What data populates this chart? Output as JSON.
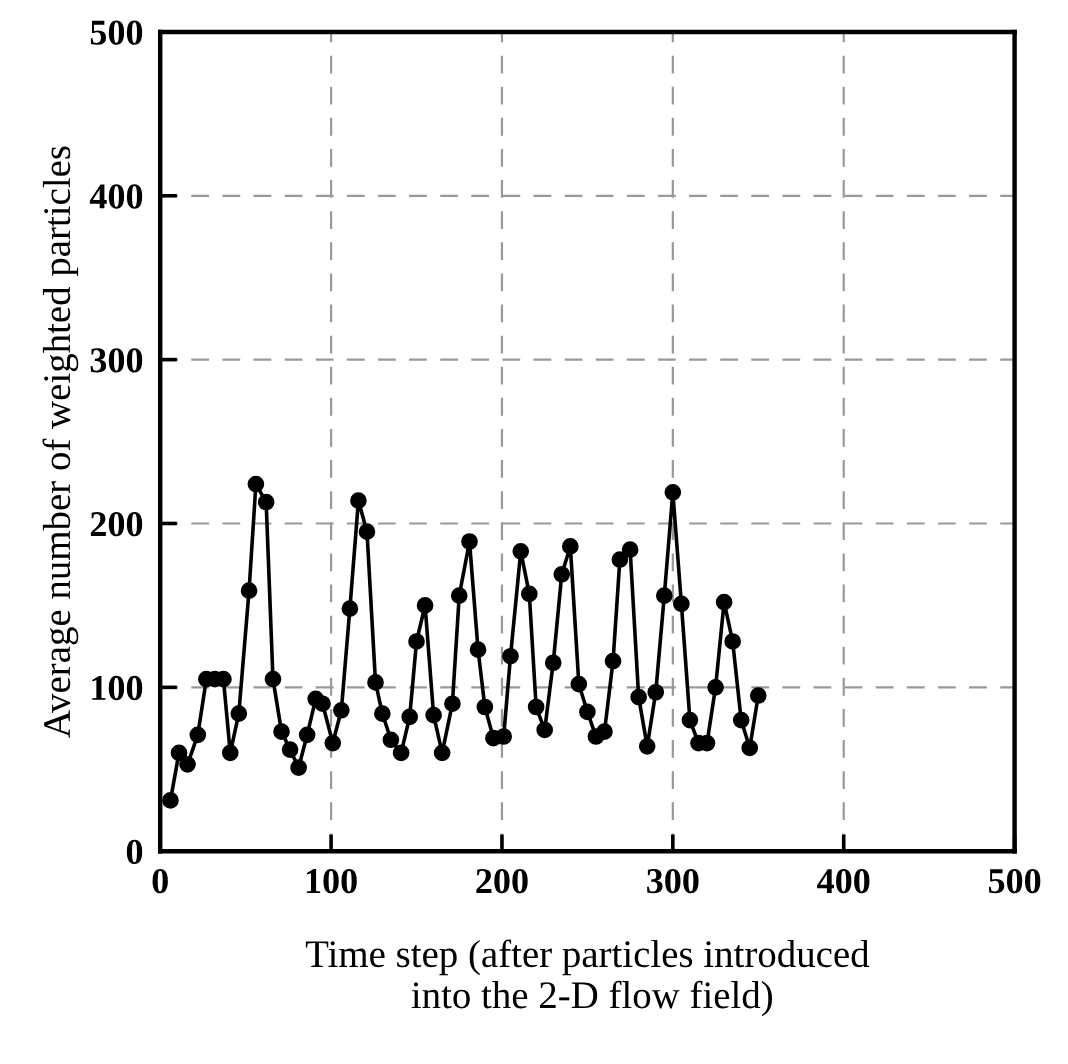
{
  "chart_data": {
    "type": "line",
    "xlabel": "Time step (after particles introduced\n into the 2-D flow field)",
    "ylabel": "Average number of weighted particles",
    "x": [
      6,
      11,
      16,
      22,
      27,
      32,
      37,
      41,
      46,
      52,
      56,
      62,
      66,
      71,
      76,
      81,
      86,
      91,
      95,
      101,
      106,
      111,
      116,
      121,
      126,
      130,
      135,
      141,
      146,
      150,
      155,
      160,
      165,
      171,
      175,
      181,
      186,
      190,
      195,
      201,
      205,
      211,
      216,
      220,
      225,
      230,
      235,
      240,
      245,
      250,
      255,
      260,
      265,
      269,
      275,
      280,
      285,
      290,
      295,
      300,
      305,
      310,
      315,
      320,
      325,
      330,
      335,
      340,
      345,
      350
    ],
    "series": [
      {
        "color": "#000000",
        "values": [
          31,
          60,
          53,
          71,
          105,
          105,
          105,
          60,
          84,
          159,
          224,
          213,
          105,
          73,
          62,
          51,
          71,
          93,
          90,
          66,
          86,
          148,
          214,
          195,
          103,
          84,
          68,
          60,
          82,
          128,
          150,
          83,
          60,
          90,
          156,
          189,
          123,
          88,
          69,
          70,
          119,
          183,
          157,
          88,
          74,
          115,
          169,
          186,
          102,
          85,
          70,
          73,
          116,
          178,
          184,
          94,
          64,
          97,
          156,
          219,
          151,
          80,
          66,
          66,
          100,
          152,
          128,
          80,
          63,
          95
        ]
      }
    ],
    "xlim": [
      0,
      500
    ],
    "ylim": [
      0,
      500
    ],
    "xticks": [
      0,
      100,
      200,
      300,
      400,
      500
    ],
    "yticks": [
      0,
      100,
      200,
      300,
      400,
      500
    ],
    "grid": true,
    "marker": "circle",
    "line_style": "solid"
  }
}
